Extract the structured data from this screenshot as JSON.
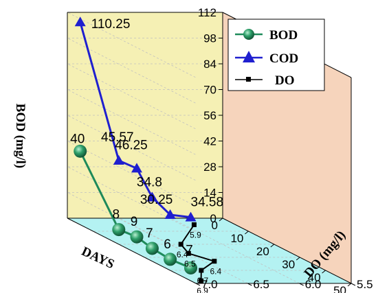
{
  "chart_data": {
    "type": "line",
    "projection": "3d-wall",
    "x": [
      5,
      20,
      27,
      33,
      40,
      48
    ],
    "series": [
      {
        "name": "BOD",
        "axis": "left",
        "values": [
          40,
          8,
          9,
          7,
          6,
          7
        ],
        "labels": [
          "40",
          "8",
          "9",
          "7",
          "6",
          "7"
        ],
        "color": "#1e8a5a",
        "marker": "sphere"
      },
      {
        "name": "COD",
        "axis": "left",
        "values": [
          110.25,
          45.57,
          46.25,
          34.8,
          30.25,
          34.58
        ],
        "labels": [
          "110.25",
          "45.57",
          "46.25",
          "34.8",
          "30.25",
          "34.58"
        ],
        "color": "#1f1fcf",
        "marker": "triangle"
      },
      {
        "name": "DO",
        "axis": "depth",
        "values": [
          5.9,
          6.4,
          6.5,
          6.4,
          6.7,
          6.9
        ],
        "labels": [
          "5.9",
          "6.4",
          "6.5",
          "6.4",
          "6.7",
          "6.9"
        ],
        "color": "#000000",
        "marker": "square"
      }
    ],
    "y_axis": {
      "label": "BOD (mg/l)",
      "range": [
        0,
        112
      ],
      "ticks": [
        "0",
        "14",
        "28",
        "42",
        "56",
        "70",
        "84",
        "98",
        "112"
      ]
    },
    "x_axis": {
      "label": "DAYS",
      "range": [
        0,
        50
      ],
      "ticks": [
        "0",
        "10",
        "20",
        "30",
        "40",
        "50"
      ]
    },
    "depth_axis": {
      "label": "DO (mg/l)",
      "range": [
        5.5,
        7.0
      ],
      "ticks": [
        "5.5",
        "6.0",
        "6.5",
        "7.0"
      ]
    },
    "legend": {
      "position": "top-right",
      "entries": [
        "BOD",
        "COD",
        "DO"
      ]
    },
    "grid": true,
    "colors": {
      "left_wall": "#f5f0b4",
      "back_wall": "#f6d4bc",
      "floor": "#b4f2f2",
      "grid": "#c0c0c0",
      "frame": "#000000"
    }
  }
}
